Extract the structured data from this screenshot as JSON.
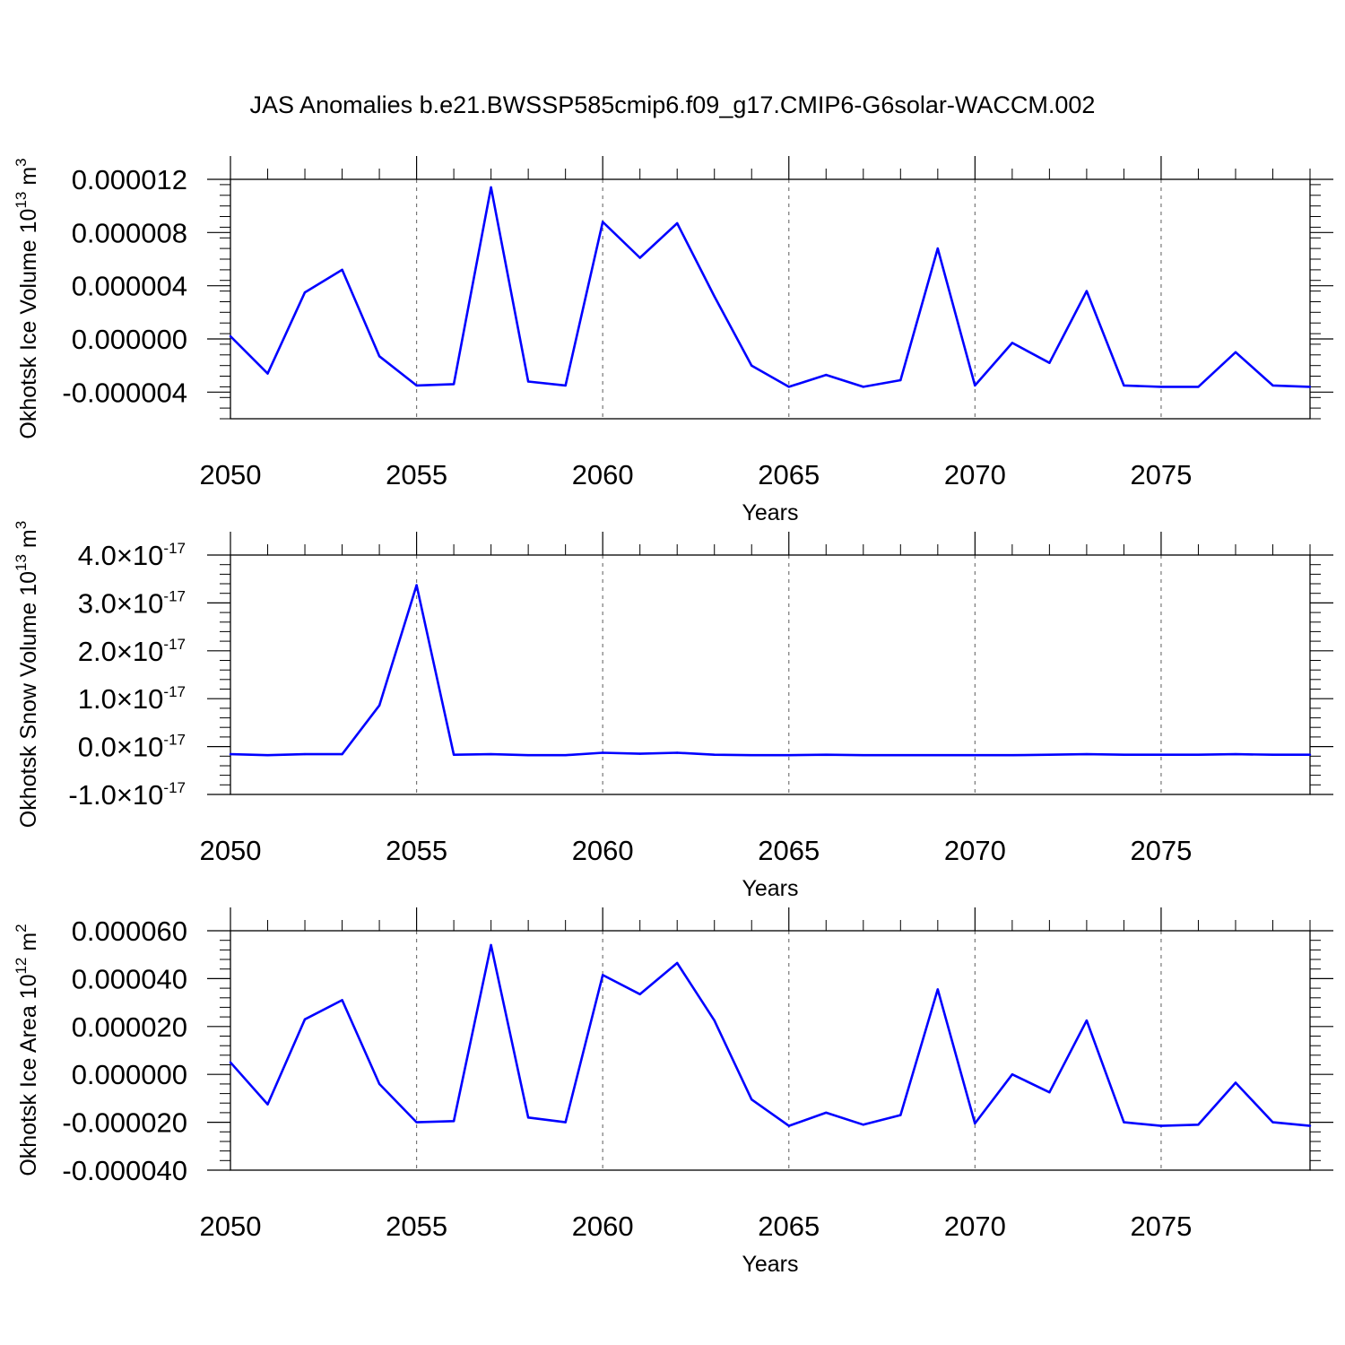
{
  "colors": {
    "series": "#0000ff"
  },
  "chart_data": [
    {
      "type": "line",
      "title": "JAS Anomalies b.e21.BWSSP585cmip6.f09_g17.CMIP6-G6solar-WACCM.002",
      "xlabel": "Years",
      "ylabel": "Okhotsk Ice Volume 10",
      "ylabel_exp": "13",
      "ylabel_unit": " m",
      "ylabel_unit_exp": "3",
      "xlim": [
        2050,
        2079
      ],
      "xticks": [
        2050,
        2055,
        2060,
        2065,
        2070,
        2075
      ],
      "xtick_labels": [
        "2050",
        "2055",
        "2060",
        "2065",
        "2070",
        "2075"
      ],
      "ylim": [
        -6e-06,
        1.2e-05
      ],
      "yticks": [
        1.2e-05,
        8e-06,
        4e-06,
        0.0,
        -4e-06
      ],
      "ytick_labels": [
        "0.000012",
        "0.000008",
        "0.000004",
        "0.000000",
        "-0.000004"
      ],
      "ytick_exps": [],
      "grid": "dashed vertical at major x ticks",
      "x": [
        2050,
        2051,
        2052,
        2053,
        2054,
        2055,
        2056,
        2057,
        2058,
        2059,
        2060,
        2061,
        2062,
        2063,
        2064,
        2065,
        2066,
        2067,
        2068,
        2069,
        2070,
        2071,
        2072,
        2073,
        2074,
        2075,
        2076,
        2077,
        2078,
        2079
      ],
      "y": [
        2e-07,
        -2.6e-06,
        3.5e-06,
        5.2e-06,
        -1.3e-06,
        -3.5e-06,
        -3.4e-06,
        1.14e-05,
        -3.2e-06,
        -3.5e-06,
        8.8e-06,
        6.1e-06,
        8.7e-06,
        3.2e-06,
        -2e-06,
        -3.6e-06,
        -2.7e-06,
        -3.6e-06,
        -3.1e-06,
        6.8e-06,
        -3.5e-06,
        -3e-07,
        -1.8e-06,
        3.6e-06,
        -3.5e-06,
        -3.6e-06,
        -3.6e-06,
        -1e-06,
        -3.5e-06,
        -3.6e-06
      ]
    },
    {
      "type": "line",
      "title": "",
      "xlabel": "Years",
      "ylabel": "Okhotsk Snow Volume 10",
      "ylabel_exp": "13",
      "ylabel_unit": " m",
      "ylabel_unit_exp": "3",
      "xlim": [
        2050,
        2079
      ],
      "xticks": [
        2050,
        2055,
        2060,
        2065,
        2070,
        2075
      ],
      "xtick_labels": [
        "2050",
        "2055",
        "2060",
        "2065",
        "2070",
        "2075"
      ],
      "ylim": [
        -1e-17,
        4e-17
      ],
      "yticks": [
        4e-17,
        3e-17,
        2e-17,
        1e-17,
        0.0,
        -1e-17
      ],
      "ytick_labels": [
        "4.0",
        "3.0",
        "2.0",
        "1.0",
        "0.0",
        "-1.0"
      ],
      "ytick_mult": "×10",
      "ytick_exps": [
        "-17",
        "-17",
        "-17",
        "-17",
        "-17",
        "-17"
      ],
      "grid": "dashed vertical at major x ticks",
      "x": [
        2050,
        2051,
        2052,
        2053,
        2054,
        2055,
        2056,
        2057,
        2058,
        2059,
        2060,
        2061,
        2062,
        2063,
        2064,
        2065,
        2066,
        2067,
        2068,
        2069,
        2070,
        2071,
        2072,
        2073,
        2074,
        2075,
        2076,
        2077,
        2078,
        2079
      ],
      "y": [
        -1.6e-18,
        -1.8e-18,
        -1.6e-18,
        -1.6e-18,
        8.6e-18,
        3.37e-17,
        -1.7e-18,
        -1.6e-18,
        -1.8e-18,
        -1.8e-18,
        -1.3e-18,
        -1.5e-18,
        -1.3e-18,
        -1.7e-18,
        -1.8e-18,
        -1.8e-18,
        -1.7e-18,
        -1.8e-18,
        -1.8e-18,
        -1.8e-18,
        -1.8e-18,
        -1.8e-18,
        -1.7e-18,
        -1.6e-18,
        -1.7e-18,
        -1.7e-18,
        -1.7e-18,
        -1.6e-18,
        -1.7e-18,
        -1.7e-18
      ]
    },
    {
      "type": "line",
      "title": "",
      "xlabel": "Years",
      "ylabel": "Okhotsk Ice Area 10",
      "ylabel_exp": "12",
      "ylabel_unit": " m",
      "ylabel_unit_exp": "2",
      "xlim": [
        2050,
        2079
      ],
      "xticks": [
        2050,
        2055,
        2060,
        2065,
        2070,
        2075
      ],
      "xtick_labels": [
        "2050",
        "2055",
        "2060",
        "2065",
        "2070",
        "2075"
      ],
      "ylim": [
        -4e-05,
        6e-05
      ],
      "yticks": [
        6e-05,
        4e-05,
        2e-05,
        0.0,
        -2e-05,
        -4e-05
      ],
      "ytick_labels": [
        "0.000060",
        "0.000040",
        "0.000020",
        "0.000000",
        "-0.000020",
        "-0.000040"
      ],
      "ytick_exps": [],
      "grid": "dashed vertical at major x ticks",
      "x": [
        2050,
        2051,
        2052,
        2053,
        2054,
        2055,
        2056,
        2057,
        2058,
        2059,
        2060,
        2061,
        2062,
        2063,
        2064,
        2065,
        2066,
        2067,
        2068,
        2069,
        2070,
        2071,
        2072,
        2073,
        2074,
        2075,
        2076,
        2077,
        2078,
        2079
      ],
      "y": [
        5e-06,
        -1.25e-05,
        2.3e-05,
        3.1e-05,
        -4e-06,
        -2e-05,
        -1.95e-05,
        5.4e-05,
        -1.8e-05,
        -2e-05,
        4.15e-05,
        3.35e-05,
        4.65e-05,
        2.25e-05,
        -1.05e-05,
        -2.15e-05,
        -1.6e-05,
        -2.1e-05,
        -1.7e-05,
        3.55e-05,
        -2.05e-05,
        0.0,
        -7.5e-06,
        2.25e-05,
        -2e-05,
        -2.15e-05,
        -2.1e-05,
        -3.5e-06,
        -2e-05,
        -2.15e-05
      ]
    }
  ]
}
